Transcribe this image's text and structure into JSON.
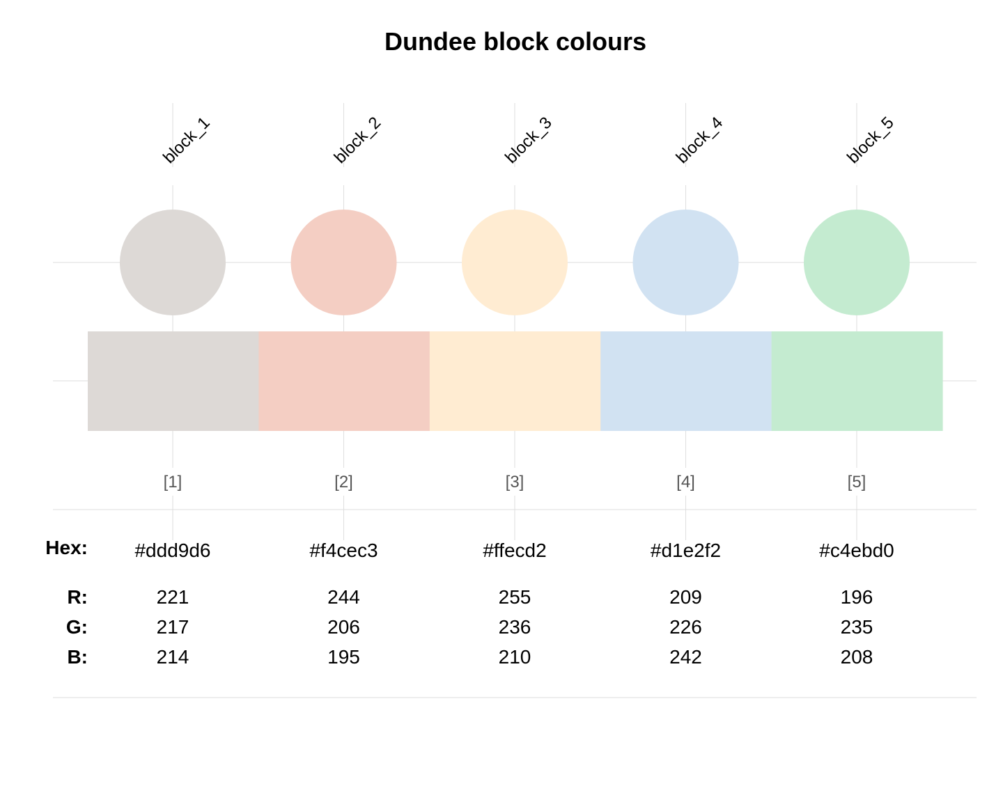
{
  "chart_data": {
    "type": "table",
    "title": "Dundee block colours",
    "categories": [
      "block_1",
      "block_2",
      "block_3",
      "block_4",
      "block_5"
    ],
    "indices": [
      "[1]",
      "[2]",
      "[3]",
      "[4]",
      "[5]"
    ],
    "hex": [
      "#ddd9d6",
      "#f4cec3",
      "#ffecd2",
      "#d1e2f2",
      "#c4ebd0"
    ],
    "r": [
      221,
      244,
      255,
      209,
      196
    ],
    "g": [
      217,
      206,
      236,
      226,
      235
    ],
    "b": [
      214,
      195,
      210,
      242,
      208
    ],
    "row_labels": {
      "hex": "Hex:",
      "r": "R:",
      "g": "G:",
      "b": "B:"
    },
    "grid": true,
    "legend": "none"
  }
}
